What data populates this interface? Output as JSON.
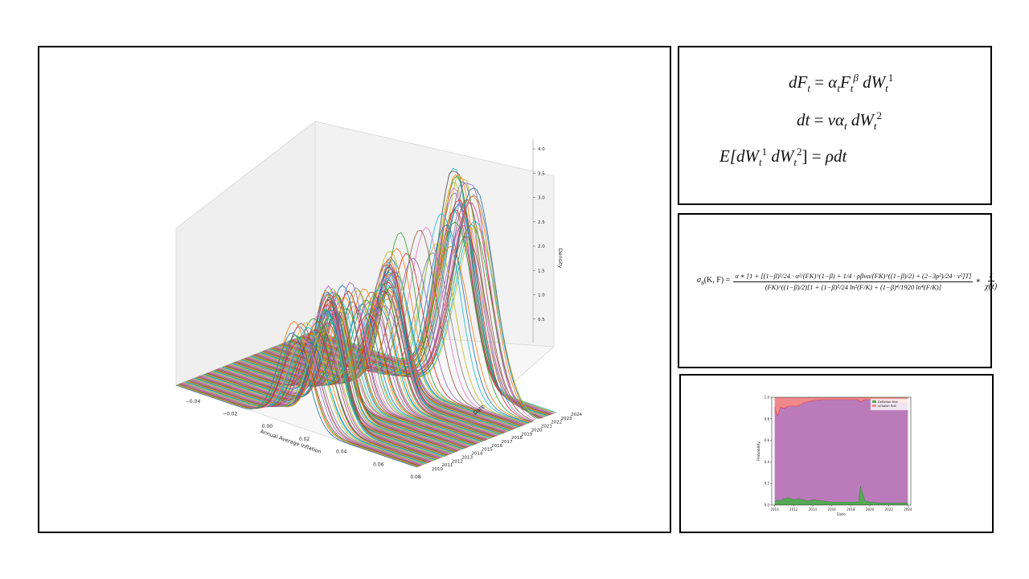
{
  "panels": {
    "density_3d": {
      "chart_data": {
        "type": "3d-line-waterfall",
        "xlabel": "Annual Average Inflation",
        "ylabel": "Date",
        "zlabel": "Density",
        "x_ticks": [
          "−0.04",
          "−0.02",
          "0.00",
          "0.02",
          "0.04",
          "0.06",
          "0.08"
        ],
        "y_ticks": [
          "2010",
          "2011",
          "2012",
          "2013",
          "2014",
          "2015",
          "2016",
          "2017",
          "2018",
          "2019",
          "2020",
          "2021",
          "2022",
          "2023",
          "2024"
        ],
        "z_ticks": [
          "0.5",
          "1.0",
          "1.5",
          "2.0",
          "2.5",
          "3.0",
          "3.5",
          "4.0"
        ],
        "xlim": [
          -0.05,
          0.08
        ],
        "zlim": [
          0,
          4.3
        ],
        "date_range": [
          "2010",
          "2024"
        ],
        "ridges": [
          {
            "year": 2010.0,
            "mean": 0.013,
            "sd": 0.008,
            "peak": 1.9
          },
          {
            "year": 2011.0,
            "mean": 0.018,
            "sd": 0.009,
            "peak": 1.9
          },
          {
            "year": 2012.0,
            "mean": 0.022,
            "sd": 0.008,
            "peak": 2.2
          },
          {
            "year": 2013.0,
            "mean": 0.015,
            "sd": 0.007,
            "peak": 2.4
          },
          {
            "year": 2014.0,
            "mean": 0.016,
            "sd": 0.007,
            "peak": 2.2
          },
          {
            "year": 2015.0,
            "mean": 0.006,
            "sd": 0.008,
            "peak": 2.0
          },
          {
            "year": 2016.0,
            "mean": 0.012,
            "sd": 0.007,
            "peak": 2.2
          },
          {
            "year": 2017.0,
            "mean": 0.018,
            "sd": 0.008,
            "peak": 2.0
          },
          {
            "year": 2018.0,
            "mean": 0.021,
            "sd": 0.008,
            "peak": 2.2
          },
          {
            "year": 2019.0,
            "mean": 0.018,
            "sd": 0.007,
            "peak": 2.5
          },
          {
            "year": 2020.0,
            "mean": 0.01,
            "sd": 0.009,
            "peak": 2.3
          },
          {
            "year": 2020.5,
            "mean": 0.014,
            "sd": 0.008,
            "peak": 2.8
          },
          {
            "year": 2021.0,
            "mean": 0.03,
            "sd": 0.009,
            "peak": 3.2
          },
          {
            "year": 2021.5,
            "mean": 0.04,
            "sd": 0.01,
            "peak": 3.6
          },
          {
            "year": 2022.0,
            "mean": 0.048,
            "sd": 0.011,
            "peak": 3.9
          },
          {
            "year": 2022.5,
            "mean": 0.042,
            "sd": 0.01,
            "peak": 4.0
          },
          {
            "year": 2023.0,
            "mean": 0.034,
            "sd": 0.009,
            "peak": 4.1
          },
          {
            "year": 2023.5,
            "mean": 0.028,
            "sd": 0.009,
            "peak": 4.0
          },
          {
            "year": 2024.0,
            "mean": 0.025,
            "sd": 0.009,
            "peak": 3.9
          }
        ]
      }
    },
    "equation_sabr": {
      "line1": {
        "lhs": "dF",
        "sub": "t",
        "eq": "=",
        "alpha": "α",
        "F": "F",
        "beta": "β",
        "dW": "dW",
        "one": "1"
      },
      "line2": {
        "lhs": "dt",
        "eq": "=",
        "rhs": "vα",
        "sub": "t",
        "dW": "dW",
        "two": "2"
      },
      "line3": {
        "lhs": "E[dW",
        "one": "1",
        "dW": "dW",
        "two": "2",
        "close": "]",
        "eq": "=",
        "rhs": "ρdt",
        "sub": "t"
      }
    },
    "equation_vol": {
      "lhs": "σ",
      "lhs_sub": "B",
      "lhs_args": "(K, F) =",
      "numerator": "α ∗ [1 + [(1−β)²/24 · α²/(FK)^(1−β) + 1/4 · ρβvα/(FK)^((1−β)/2) + (2−3ρ²)/24 · v²]T]",
      "denominator": "(FK)^((1−β)/2)[1 + (1−β)²/24 ln²(F/K) + (1−β)⁴/1920 ln⁴(F/K)]",
      "times": "∗",
      "z_num": "z",
      "z_den": "χ(z)"
    },
    "stacked_prob": {
      "chart_data": {
        "type": "area",
        "stacked": true,
        "xlabel": "Date",
        "ylabel": "Probability",
        "ylim": [
          0,
          1.0
        ],
        "x_ticks": [
          "2010",
          "2012",
          "2014",
          "2016",
          "2018",
          "2020",
          "2022",
          "2024"
        ],
        "y_ticks": [
          "0.0",
          "0.2",
          "0.4",
          "0.6",
          "0.8",
          "1.0"
        ],
        "legend": "top-right",
        "x": [
          2010.0,
          2010.3,
          2010.6,
          2011.0,
          2011.5,
          2012.0,
          2012.5,
          2013.0,
          2013.5,
          2014.0,
          2015.0,
          2016.0,
          2017.0,
          2018.0,
          2018.8,
          2019.0,
          2019.5,
          2020.0,
          2021.0,
          2022.0,
          2023.0,
          2024.0
        ],
        "series": [
          {
            "name": "Deflation Risk",
            "color": "#55a855",
            "values": [
              0.03,
              0.05,
              0.04,
              0.06,
              0.07,
              0.05,
              0.06,
              0.05,
              0.04,
              0.05,
              0.04,
              0.03,
              0.03,
              0.03,
              0.03,
              0.18,
              0.04,
              0.03,
              0.02,
              0.02,
              0.02,
              0.02
            ]
          },
          {
            "name": "",
            "color": "#bb7bbb",
            "values": [
              0.88,
              0.78,
              0.87,
              0.84,
              0.85,
              0.87,
              0.86,
              0.9,
              0.92,
              0.92,
              0.94,
              0.95,
              0.95,
              0.95,
              0.95,
              0.78,
              0.94,
              0.95,
              0.95,
              0.95,
              0.93,
              0.92
            ]
          },
          {
            "name": "Inflation Risk",
            "color": "#f08a8a",
            "values": [
              0.09,
              0.17,
              0.09,
              0.1,
              0.08,
              0.08,
              0.08,
              0.05,
              0.04,
              0.03,
              0.02,
              0.02,
              0.02,
              0.02,
              0.02,
              0.04,
              0.02,
              0.02,
              0.03,
              0.03,
              0.05,
              0.06
            ]
          }
        ],
        "boundary_color": "#e02020"
      }
    }
  }
}
